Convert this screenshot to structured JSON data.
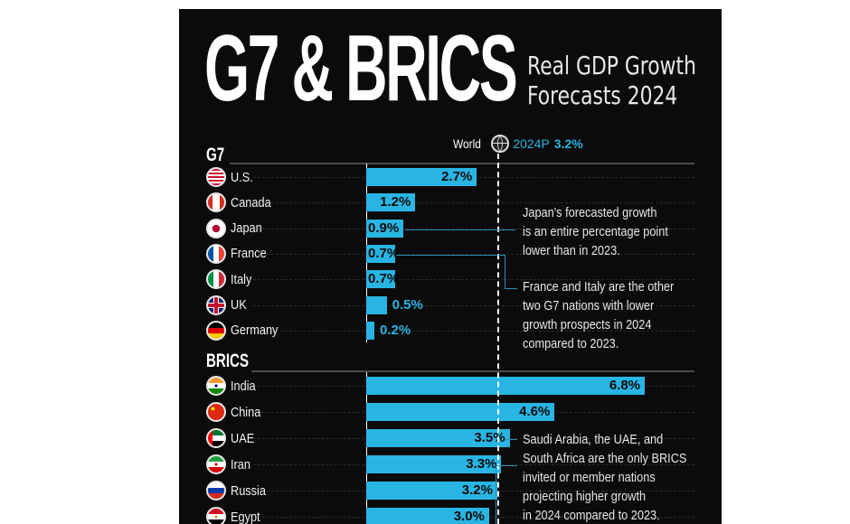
{
  "header": {
    "title": "G7 & BRICS",
    "subtitle_line1": "Real GDP Growth",
    "subtitle_line2": "Forecasts 2024"
  },
  "world": {
    "label": "World",
    "icon": "globe-icon",
    "period": "2024P",
    "value_label": "3.2%"
  },
  "annotations": {
    "japan": [
      "Japan's forecasted growth",
      "is an entire percentage point",
      "lower than in 2023."
    ],
    "france_italy": [
      "France and Italy are the other",
      "two G7 nations with lower",
      "growth prospects in 2024",
      "compared to 2023."
    ],
    "brics": [
      "Saudi Arabia, the UAE, and",
      "South Africa are the only BRICS",
      "invited or member nations",
      "projecting higher growth",
      "in 2024 compared to 2023."
    ]
  },
  "colors": {
    "bar": "#29b5e3",
    "background": "#0b0b0b",
    "text": "#ffffff"
  },
  "chart_data": {
    "type": "bar",
    "orientation": "horizontal",
    "title": "G7 & BRICS Real GDP Growth Forecasts 2024",
    "xlabel": "",
    "ylabel": "",
    "unit": "%",
    "xlim": [
      0,
      7.5
    ],
    "reference_line": {
      "label": "World 2024P",
      "value": 3.2
    },
    "groups": [
      {
        "name": "G7",
        "categories": [
          "U.S.",
          "Canada",
          "Japan",
          "France",
          "Italy",
          "UK",
          "Germany"
        ],
        "values": [
          2.7,
          1.2,
          0.9,
          0.7,
          0.7,
          0.5,
          0.2
        ],
        "labels": [
          "2.7%",
          "1.2%",
          "0.9%",
          "0.7%",
          "0.7%",
          "0.5%",
          "0.2%"
        ],
        "flags": [
          "us",
          "ca",
          "jp",
          "fr",
          "it",
          "uk",
          "de"
        ]
      },
      {
        "name": "BRICS",
        "categories": [
          "India",
          "China",
          "UAE",
          "Iran",
          "Russia",
          "Egypt"
        ],
        "values": [
          6.8,
          4.6,
          3.5,
          3.3,
          3.2,
          3.0
        ],
        "labels": [
          "6.8%",
          "4.6%",
          "3.5%",
          "3.3%",
          "3.2%",
          "3.0%"
        ],
        "flags": [
          "in",
          "cn",
          "ae",
          "ir",
          "ru",
          "eg"
        ]
      }
    ]
  }
}
